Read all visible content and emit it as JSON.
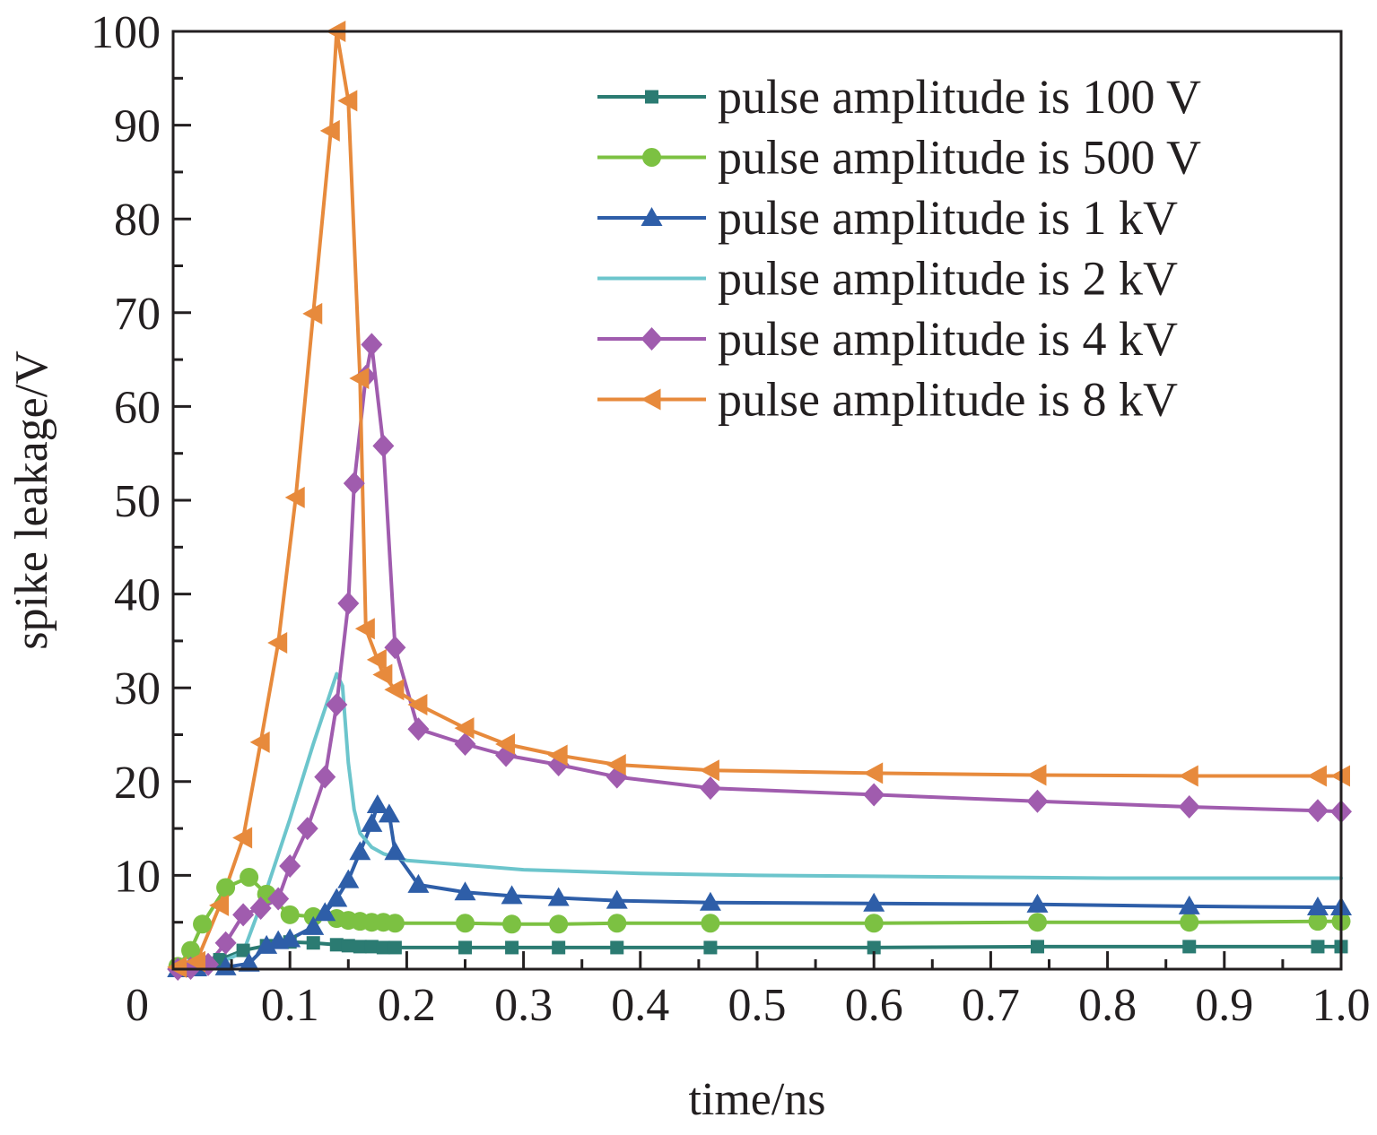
{
  "chart_data": {
    "type": "line",
    "xlabel": "time/ns",
    "ylabel": "spike leakage/V",
    "xlim": [
      0,
      1.0
    ],
    "ylim": [
      0,
      100
    ],
    "xticks": [
      {
        "value": 0,
        "label": "0"
      },
      {
        "value": 0.1,
        "label": "0.1"
      },
      {
        "value": 0.2,
        "label": "0.2"
      },
      {
        "value": 0.3,
        "label": "0.3"
      },
      {
        "value": 0.4,
        "label": "0.4"
      },
      {
        "value": 0.5,
        "label": "0.5"
      },
      {
        "value": 0.6,
        "label": "0.6"
      },
      {
        "value": 0.7,
        "label": "0.7"
      },
      {
        "value": 0.8,
        "label": "0.8"
      },
      {
        "value": 0.9,
        "label": "0.9"
      },
      {
        "value": 1.0,
        "label": "1.0"
      }
    ],
    "yticks": [
      {
        "value": 10,
        "label": "10"
      },
      {
        "value": 20,
        "label": "20"
      },
      {
        "value": 30,
        "label": "30"
      },
      {
        "value": 40,
        "label": "40"
      },
      {
        "value": 50,
        "label": "50"
      },
      {
        "value": 60,
        "label": "60"
      },
      {
        "value": 70,
        "label": "70"
      },
      {
        "value": 80,
        "label": "80"
      },
      {
        "value": 90,
        "label": "90"
      },
      {
        "value": 100,
        "label": "100"
      }
    ],
    "grid": false,
    "legend_position": "top-right",
    "series": [
      {
        "name": "pulse amplitude is 100 V",
        "color": "#2b7b72",
        "marker": "square",
        "x": [
          0.004,
          0.02,
          0.04,
          0.06,
          0.08,
          0.1,
          0.12,
          0.14,
          0.15,
          0.16,
          0.17,
          0.18,
          0.19,
          0.25,
          0.29,
          0.33,
          0.38,
          0.46,
          0.6,
          0.74,
          0.87,
          0.98,
          1.0
        ],
        "y": [
          0.2,
          0.4,
          1.0,
          2.0,
          2.5,
          2.9,
          2.8,
          2.6,
          2.5,
          2.4,
          2.4,
          2.3,
          2.3,
          2.3,
          2.3,
          2.3,
          2.3,
          2.3,
          2.3,
          2.4,
          2.4,
          2.4,
          2.4
        ]
      },
      {
        "name": "pulse amplitude is 500 V",
        "color": "#7cc142",
        "marker": "circle",
        "x": [
          0.004,
          0.015,
          0.025,
          0.045,
          0.065,
          0.08,
          0.1,
          0.12,
          0.14,
          0.15,
          0.16,
          0.17,
          0.18,
          0.19,
          0.25,
          0.29,
          0.33,
          0.38,
          0.46,
          0.6,
          0.74,
          0.87,
          0.98,
          1.0
        ],
        "y": [
          0.3,
          2.0,
          4.8,
          8.7,
          9.8,
          8.0,
          5.8,
          5.6,
          5.4,
          5.2,
          5.1,
          5.0,
          5.0,
          4.9,
          4.9,
          4.8,
          4.8,
          4.9,
          4.9,
          4.9,
          5.0,
          5.0,
          5.1,
          5.1
        ]
      },
      {
        "name": "pulse amplitude is 1 kV",
        "color": "#2e5ea8",
        "marker": "triangle-up",
        "x": [
          0.004,
          0.02,
          0.045,
          0.065,
          0.08,
          0.09,
          0.1,
          0.12,
          0.13,
          0.14,
          0.15,
          0.16,
          0.17,
          0.175,
          0.185,
          0.19,
          0.21,
          0.25,
          0.29,
          0.33,
          0.38,
          0.46,
          0.6,
          0.74,
          0.87,
          0.98,
          1.0
        ],
        "y": [
          0.0,
          0.1,
          0.2,
          0.6,
          2.5,
          3.0,
          3.2,
          4.5,
          6.0,
          7.5,
          9.5,
          12.5,
          15.5,
          17.5,
          16.5,
          12.5,
          9.0,
          8.2,
          7.8,
          7.6,
          7.3,
          7.1,
          7.0,
          6.9,
          6.7,
          6.6,
          6.6
        ]
      },
      {
        "name": "pulse amplitude is 2 kV",
        "color": "#6cc5cc",
        "marker": "none",
        "x": [
          0.004,
          0.02,
          0.04,
          0.06,
          0.08,
          0.1,
          0.12,
          0.14,
          0.145,
          0.15,
          0.155,
          0.16,
          0.17,
          0.18,
          0.2,
          0.25,
          0.3,
          0.4,
          0.5,
          0.6,
          0.7,
          0.8,
          0.9,
          1.0
        ],
        "y": [
          0.0,
          0.2,
          0.7,
          1.8,
          8.5,
          16.0,
          24.0,
          31.5,
          30.2,
          22.0,
          17.0,
          14.5,
          13.0,
          12.3,
          11.6,
          11.1,
          10.6,
          10.2,
          10.0,
          9.9,
          9.8,
          9.7,
          9.7,
          9.7
        ]
      },
      {
        "name": "pulse amplitude is 4 kV",
        "color": "#a05cae",
        "marker": "diamond",
        "x": [
          0.004,
          0.015,
          0.03,
          0.045,
          0.06,
          0.075,
          0.09,
          0.1,
          0.115,
          0.13,
          0.14,
          0.15,
          0.155,
          0.165,
          0.17,
          0.18,
          0.19,
          0.21,
          0.25,
          0.285,
          0.33,
          0.38,
          0.46,
          0.6,
          0.74,
          0.87,
          0.98,
          1.0
        ],
        "y": [
          0.0,
          0.1,
          0.5,
          2.8,
          5.8,
          6.5,
          7.5,
          11.0,
          15.0,
          20.5,
          28.2,
          39.0,
          51.8,
          63.2,
          66.6,
          55.8,
          34.3,
          25.6,
          24.0,
          22.8,
          21.8,
          20.5,
          19.3,
          18.6,
          17.9,
          17.3,
          16.9,
          16.8
        ]
      },
      {
        "name": "pulse amplitude is 8 kV",
        "color": "#e78a3c",
        "marker": "triangle-left",
        "x": [
          0.004,
          0.02,
          0.04,
          0.06,
          0.075,
          0.09,
          0.105,
          0.12,
          0.135,
          0.14,
          0.15,
          0.16,
          0.165,
          0.175,
          0.18,
          0.19,
          0.21,
          0.25,
          0.285,
          0.33,
          0.38,
          0.46,
          0.6,
          0.74,
          0.87,
          0.98,
          1.0
        ],
        "y": [
          0.2,
          0.8,
          6.8,
          14.0,
          24.2,
          34.8,
          50.3,
          69.9,
          89.4,
          100.0,
          92.6,
          63.0,
          36.3,
          33.0,
          31.4,
          29.8,
          28.2,
          25.7,
          24.0,
          22.8,
          21.8,
          21.2,
          20.9,
          20.7,
          20.6,
          20.6,
          20.6
        ]
      }
    ]
  }
}
